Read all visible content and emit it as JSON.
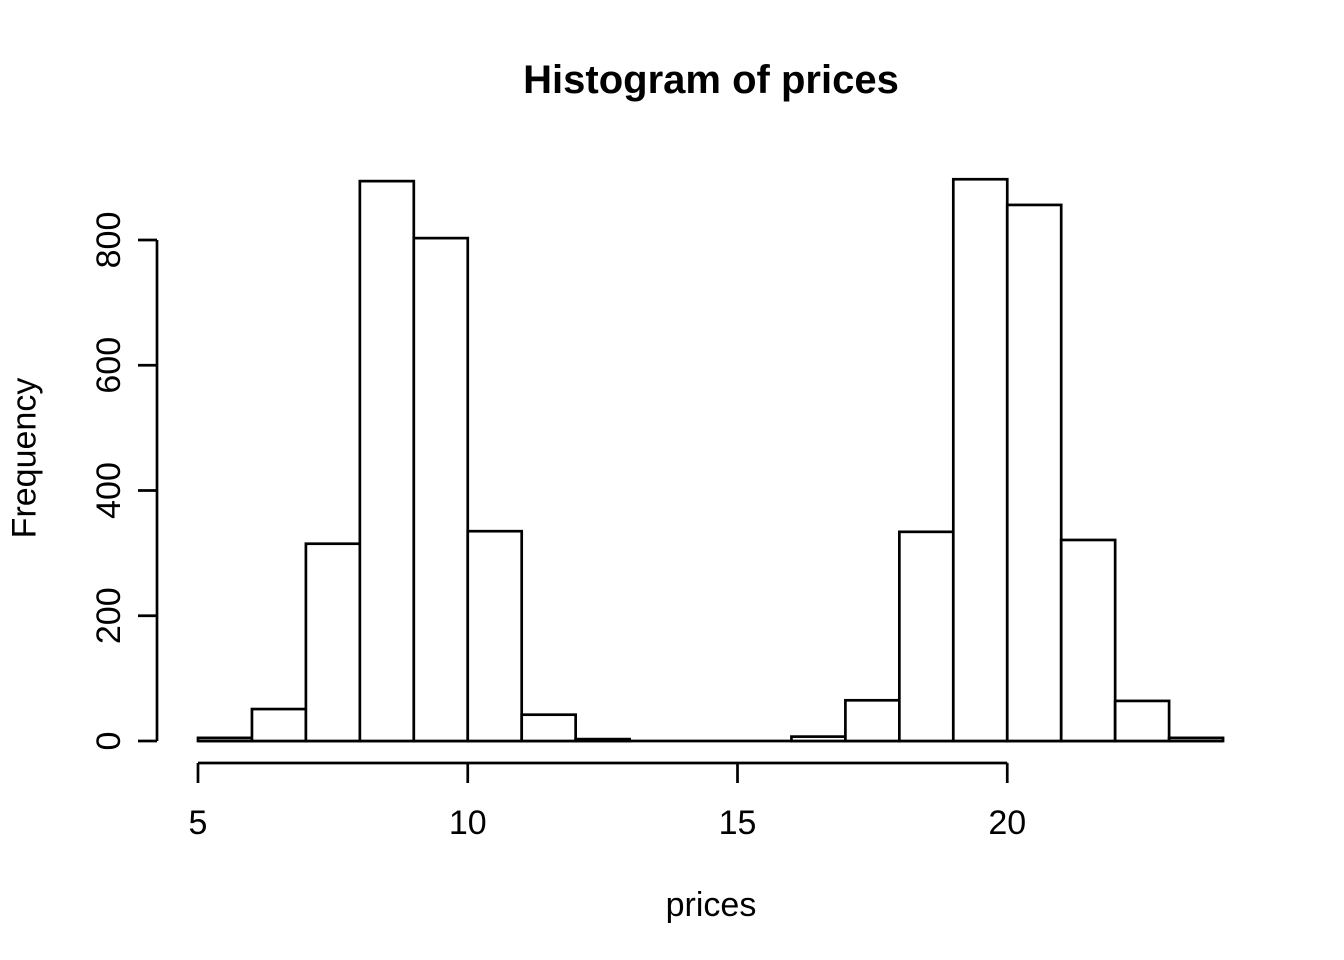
{
  "figure": {
    "title": "Histogram of prices",
    "xlabel": "prices",
    "ylabel": "Frequency"
  },
  "chart_data": {
    "type": "bar",
    "subtype": "histogram",
    "title": "Histogram of prices",
    "xlabel": "prices",
    "ylabel": "Frequency",
    "bin_breaks": [
      5,
      6,
      7,
      8,
      9,
      10,
      11,
      12,
      13,
      14,
      15,
      16,
      17,
      18,
      19,
      20,
      21,
      22,
      23,
      24
    ],
    "counts": [
      5,
      51,
      315,
      894,
      803,
      335,
      42,
      3,
      0,
      0,
      0,
      7,
      65,
      334,
      897,
      856,
      321,
      64,
      5
    ],
    "x_ticks": [
      5,
      10,
      15,
      20
    ],
    "y_ticks": [
      0,
      200,
      400,
      600,
      800
    ],
    "xlim": [
      5,
      24
    ],
    "ylim": [
      0,
      800
    ],
    "grid": false,
    "legend": false,
    "bar_fill": "#ffffff",
    "line_color": "#000000",
    "background": "#ffffff"
  }
}
